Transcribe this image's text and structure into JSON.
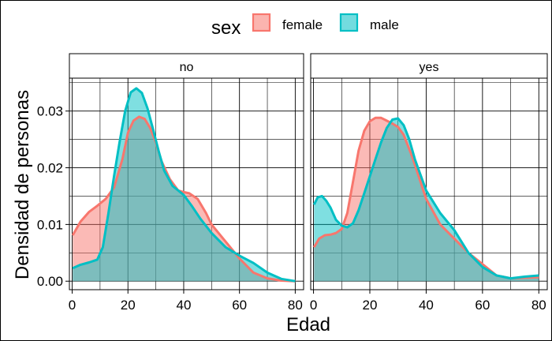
{
  "legend": {
    "title": "sex",
    "items": [
      {
        "label": "female",
        "color": "#F8766D"
      },
      {
        "label": "male",
        "color": "#00BFC4"
      }
    ]
  },
  "chart_data": {
    "type": "area",
    "xlabel": "Edad",
    "ylabel": "Densidad de personas",
    "xlim": [
      -1,
      83
    ],
    "ylim": [
      -0.0015,
      0.0358
    ],
    "x_ticks": [
      0,
      20,
      40,
      60,
      80
    ],
    "y_ticks": [
      0.0,
      0.01,
      0.02,
      0.03
    ],
    "y_tick_labels": [
      "0.00",
      "0.01",
      "0.02",
      "0.03"
    ],
    "grid": true,
    "legend_position": "top",
    "panels": [
      {
        "label": "no",
        "series": [
          {
            "name": "female",
            "color": "#F8766D",
            "x": [
              0.2,
              3,
              6,
              9,
              12,
              15,
              18,
              20,
              22,
              24,
              26,
              28,
              30,
              32,
              35,
              38,
              40,
              42,
              45,
              48,
              50,
              55,
              60,
              65,
              70,
              75,
              80
            ],
            "y": [
              0.0081,
              0.0105,
              0.0122,
              0.0133,
              0.0145,
              0.0165,
              0.0215,
              0.0262,
              0.0283,
              0.029,
              0.0286,
              0.027,
              0.0245,
              0.0212,
              0.018,
              0.016,
              0.0157,
              0.0155,
              0.0145,
              0.012,
              0.01,
              0.007,
              0.004,
              0.0015,
              0.0005,
              0.0001,
              0.0
            ]
          },
          {
            "name": "male",
            "color": "#00BFC4",
            "x": [
              0.2,
              3,
              6,
              9,
              11,
              13,
              15,
              17,
              19,
              21,
              23,
              25,
              27,
              29,
              31,
              33,
              36,
              40,
              43,
              46,
              50,
              55,
              60,
              65,
              70,
              75,
              80
            ],
            "y": [
              0.0023,
              0.0029,
              0.0033,
              0.0038,
              0.006,
              0.012,
              0.0185,
              0.0245,
              0.03,
              0.0333,
              0.034,
              0.0332,
              0.0305,
              0.0268,
              0.023,
              0.0195,
              0.0168,
              0.0152,
              0.0132,
              0.011,
              0.0085,
              0.006,
              0.0045,
              0.0032,
              0.0015,
              0.0004,
              0.0
            ]
          }
        ]
      },
      {
        "label": "yes",
        "series": [
          {
            "name": "female",
            "color": "#F8766D",
            "x": [
              0.2,
              2,
              4,
              6,
              8,
              10,
              12,
              14,
              16,
              18,
              20,
              22,
              24,
              26,
              28,
              30,
              32,
              35,
              38,
              40,
              45,
              50,
              55,
              60,
              65,
              70,
              75,
              80
            ],
            "y": [
              0.006,
              0.0075,
              0.0081,
              0.0082,
              0.0085,
              0.0092,
              0.012,
              0.0175,
              0.023,
              0.0265,
              0.0282,
              0.0288,
              0.0288,
              0.0283,
              0.0278,
              0.0272,
              0.0258,
              0.022,
              0.0175,
              0.0145,
              0.01,
              0.0075,
              0.005,
              0.003,
              0.001,
              0.0005,
              0.0006,
              0.0007
            ]
          },
          {
            "name": "male",
            "color": "#00BFC4",
            "x": [
              0.2,
              1.5,
              3,
              4.5,
              6,
              8,
              10,
              12,
              14,
              16,
              18,
              20,
              22,
              24,
              26,
              28,
              30,
              32,
              34,
              36,
              40,
              45,
              50,
              55,
              60,
              65,
              70,
              75,
              80
            ],
            "y": [
              0.0135,
              0.0148,
              0.015,
              0.0142,
              0.013,
              0.0108,
              0.0098,
              0.0095,
              0.0102,
              0.0125,
              0.0155,
              0.0185,
              0.0215,
              0.0245,
              0.027,
              0.0285,
              0.0287,
              0.0275,
              0.025,
              0.0215,
              0.016,
              0.012,
              0.009,
              0.005,
              0.0025,
              0.001,
              0.0005,
              0.0008,
              0.001
            ]
          }
        ]
      }
    ]
  }
}
